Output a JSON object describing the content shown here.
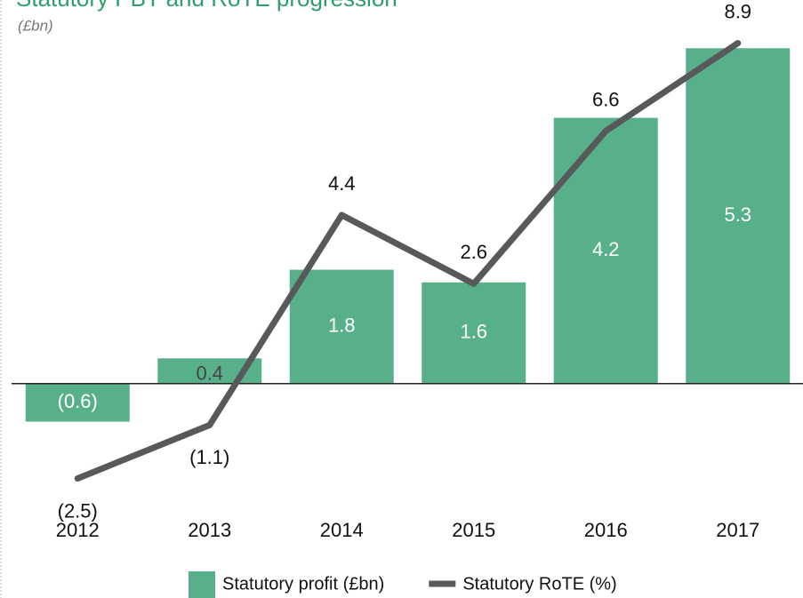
{
  "chart_data": {
    "type": "bar_line",
    "title": "Statutory PBT and RoTE progression",
    "subtitle": "(£bn)",
    "categories": [
      "2012",
      "2013",
      "2014",
      "2015",
      "2016",
      "2017"
    ],
    "series": [
      {
        "name": "Statutory profit (£bn)",
        "type": "bar",
        "color": "#58b08a",
        "values": [
          -0.6,
          0.4,
          1.8,
          1.6,
          4.2,
          5.3
        ],
        "value_labels": [
          "(0.6)",
          "0.4",
          "1.8",
          "1.6",
          "4.2",
          "5.3"
        ]
      },
      {
        "name": "Statutory RoTE (%)",
        "type": "line",
        "axis": "y2",
        "color": "#58595b",
        "values": [
          -2.5,
          -1.1,
          4.4,
          2.6,
          6.6,
          8.9
        ],
        "value_labels": [
          "(2.5)",
          "(1.1)",
          "4.4",
          "2.6",
          "6.6",
          "8.9"
        ]
      }
    ],
    "ylim": [
      -1.8,
      5.5
    ],
    "y2lim": [
      -3.0,
      9.1
    ]
  }
}
